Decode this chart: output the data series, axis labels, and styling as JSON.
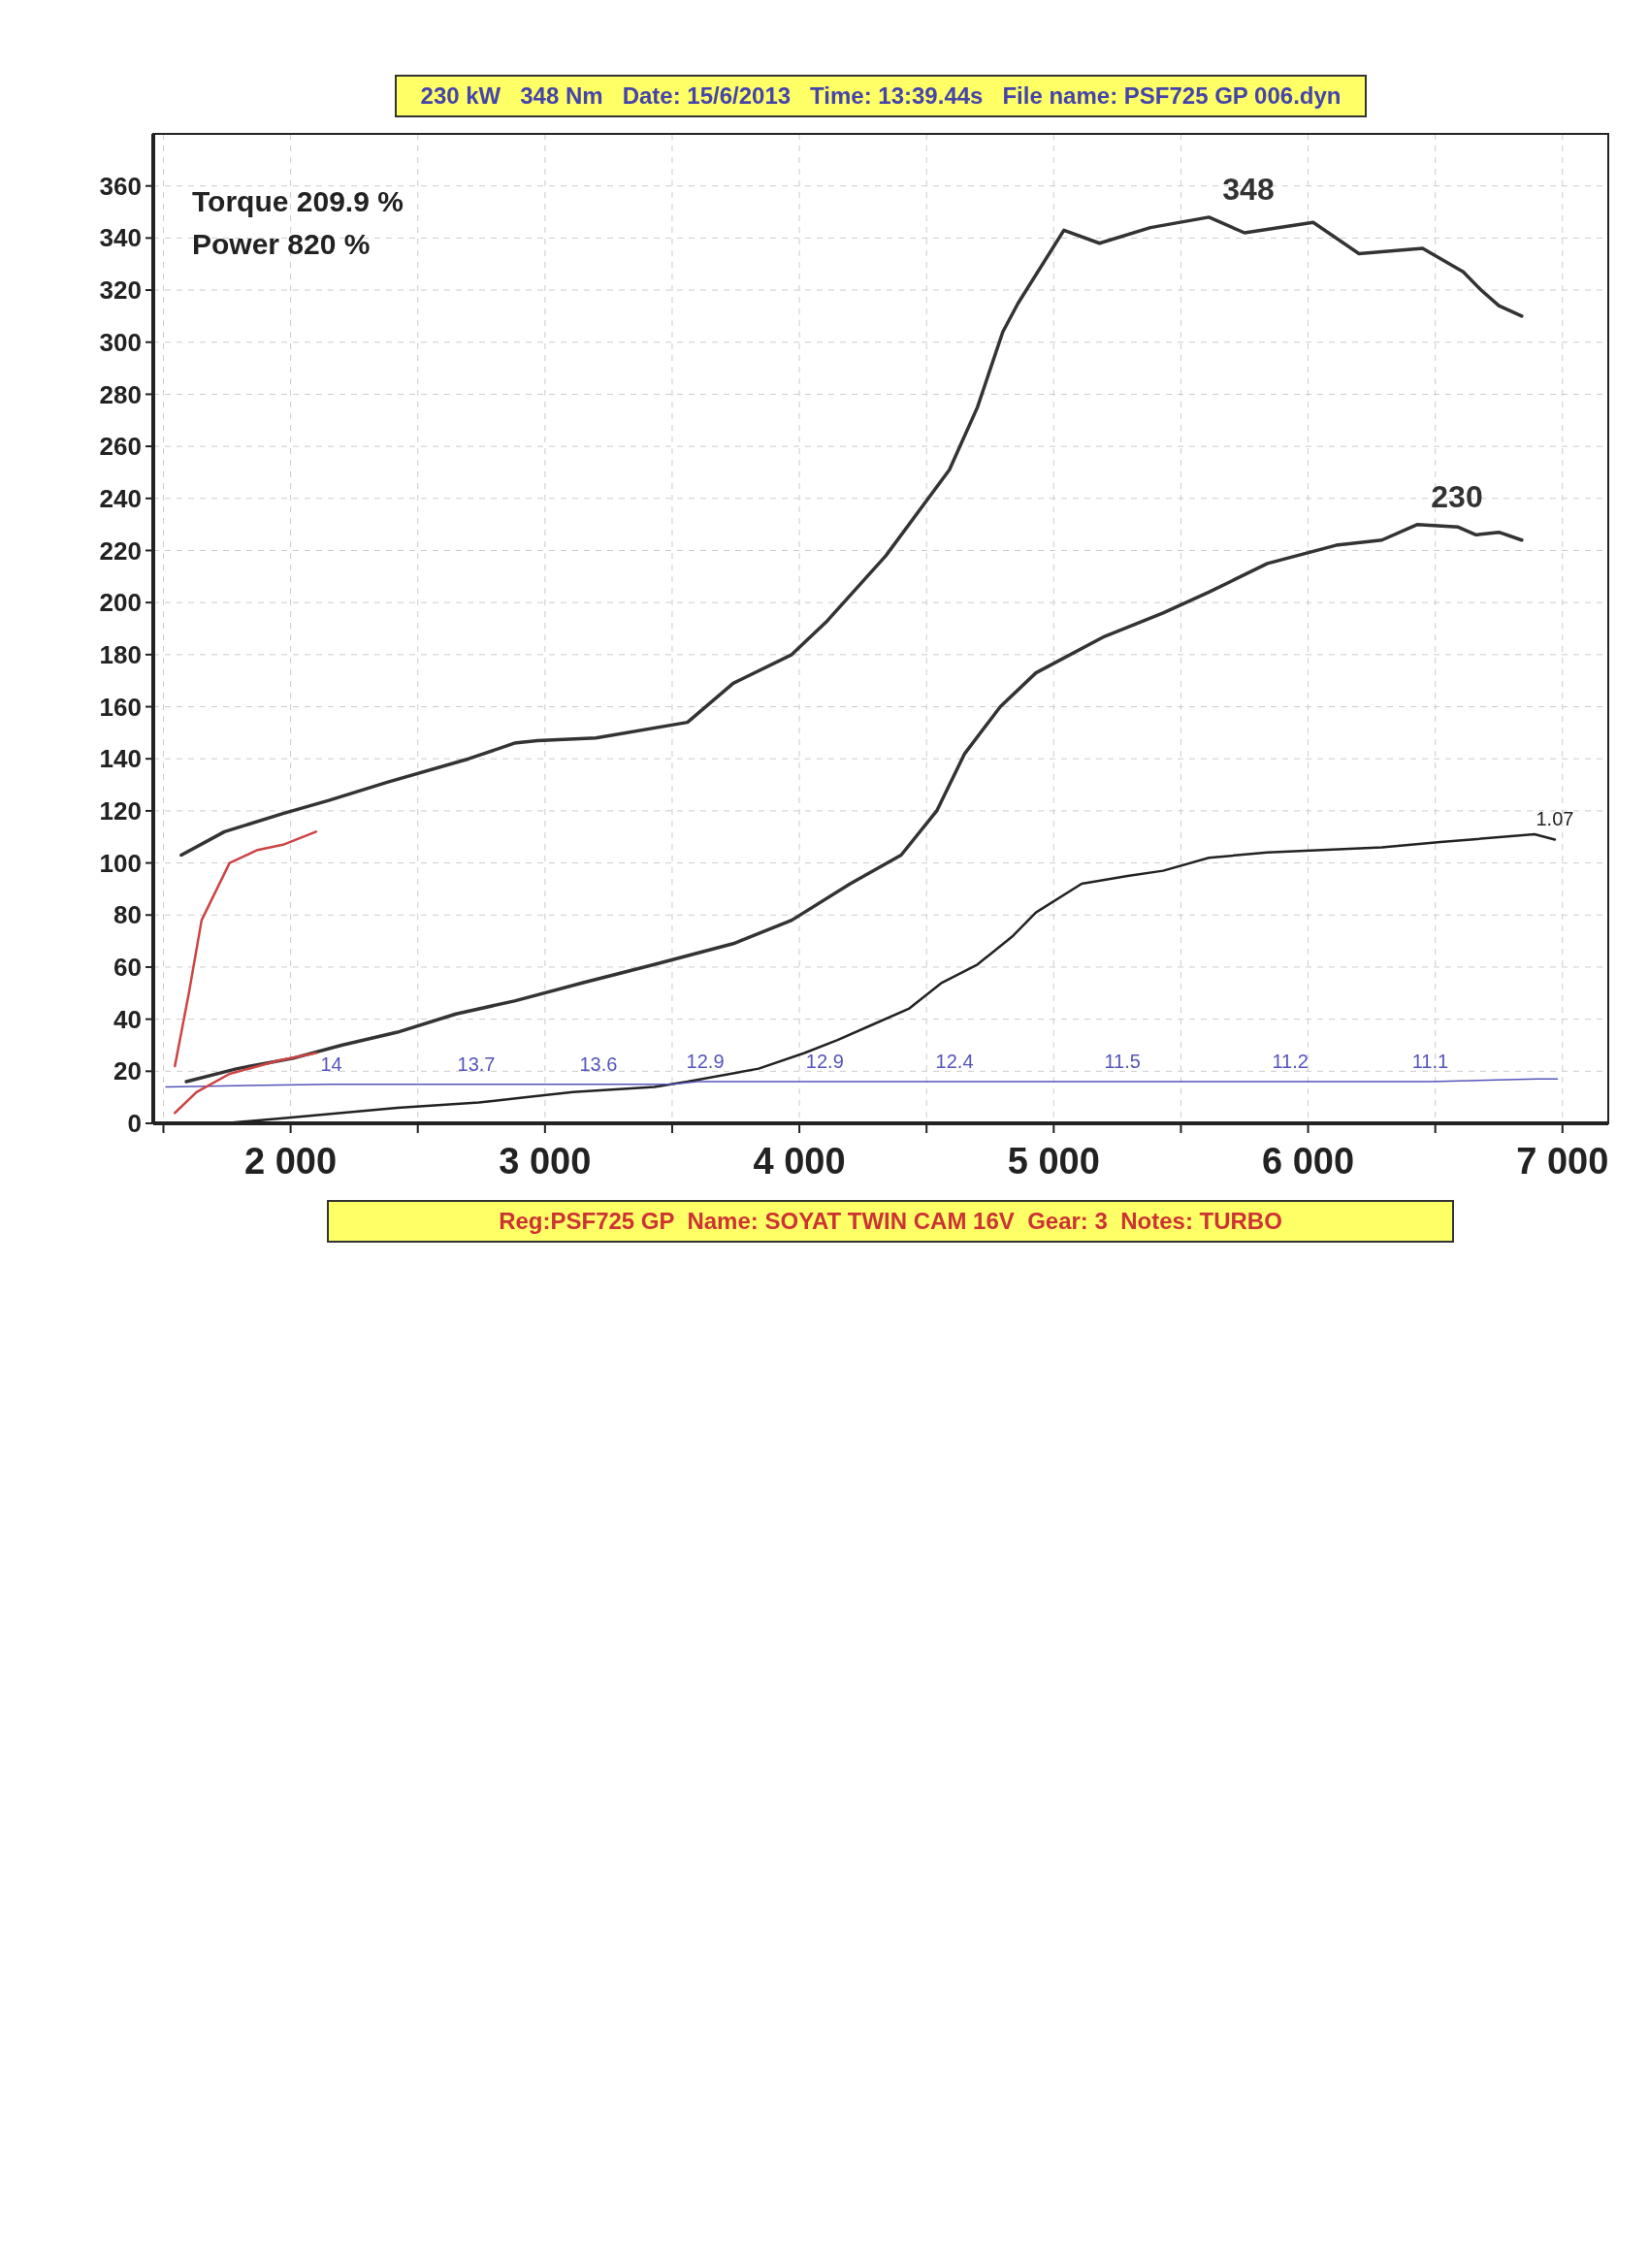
{
  "chart_data": {
    "type": "line",
    "title": "230 kW   348 Nm   Date: 15/6/2013   Time: 13:39.44s   File name: PSF725 GP 006.dyn",
    "subtitle": "Reg:PSF725 GP  Name: SOYAT TWIN CAM 16V  Gear: 3  Notes: TURBO",
    "annotations": [
      "Torque 209.9 %",
      "Power 820 %",
      {
        "text": "14",
        "x": 2160,
        "y": 15
      },
      {
        "text": "13.7",
        "x": 2730,
        "y": 15
      },
      {
        "text": "13.6",
        "x": 3210,
        "y": 15
      },
      {
        "text": "12.9",
        "x": 3630,
        "y": 16
      },
      {
        "text": "12.9",
        "x": 4100,
        "y": 16
      },
      {
        "text": "12.4",
        "x": 4610,
        "y": 16
      },
      {
        "text": "11.5",
        "x": 5270,
        "y": 16
      },
      {
        "text": "11.2",
        "x": 5930,
        "y": 16
      },
      {
        "text": "11.1",
        "x": 6480,
        "y": 16
      },
      {
        "text": "1.07",
        "x": 6970,
        "y": 109
      }
    ],
    "xlim": [
      1460,
      7180
    ],
    "ylim": [
      0,
      380
    ],
    "xticks": [
      {
        "value": 1500,
        "label": null
      },
      {
        "value": 2000,
        "label": "2 000"
      },
      {
        "value": 2500,
        "label": null
      },
      {
        "value": 3000,
        "label": "3 000"
      },
      {
        "value": 3500,
        "label": null
      },
      {
        "value": 4000,
        "label": "4 000"
      },
      {
        "value": 4500,
        "label": null
      },
      {
        "value": 5000,
        "label": "5 000"
      },
      {
        "value": 5500,
        "label": null
      },
      {
        "value": 6000,
        "label": "6 000"
      },
      {
        "value": 6500,
        "label": null
      },
      {
        "value": 7000,
        "label": "7 000"
      }
    ],
    "yticks": [
      0,
      20,
      40,
      60,
      80,
      100,
      120,
      140,
      160,
      180,
      200,
      220,
      240,
      260,
      280,
      300,
      320,
      340,
      360
    ],
    "grid": true,
    "marker": "none",
    "line_style": "solid",
    "series": [
      {
        "color": "#333333",
        "x": [
          1570,
          1740,
          1970,
          2150,
          2380,
          2700,
          2880,
          2970,
          3200,
          3560,
          3740,
          3970,
          4110,
          4340,
          4590,
          4700,
          4800,
          4860,
          5040,
          5180,
          5380,
          5610,
          5750,
          6020,
          6200,
          6450,
          6610,
          6680,
          6750,
          6840
        ],
        "values": [
          103,
          112,
          119,
          124,
          131,
          140,
          146,
          147,
          148,
          154,
          169,
          180,
          193,
          218,
          251,
          275,
          304,
          315,
          343,
          338,
          344,
          348,
          342,
          346,
          334,
          336,
          327,
          320,
          314,
          310
        ],
        "value_labels": [
          null,
          null,
          null,
          null,
          null,
          null,
          null,
          null,
          null,
          null,
          null,
          null,
          null,
          null,
          null,
          null,
          null,
          null,
          null,
          null,
          null,
          "348",
          null,
          null,
          null,
          null,
          null,
          null,
          null,
          null
        ]
      },
      {
        "color": "#333333",
        "x": [
          1590,
          1790,
          2010,
          2200,
          2420,
          2650,
          2880,
          3150,
          3430,
          3740,
          3970,
          4200,
          4400,
          4540,
          4650,
          4790,
          4930,
          5200,
          5430,
          5610,
          5840,
          6110,
          6290,
          6430,
          6590,
          6660,
          6750,
          6840
        ],
        "values": [
          16,
          21,
          25,
          30,
          35,
          42,
          47,
          54,
          61,
          69,
          78,
          92,
          103,
          120,
          142,
          160,
          173,
          187,
          196,
          204,
          215,
          222,
          224,
          230,
          229,
          226,
          227,
          224
        ],
        "value_labels": [
          null,
          null,
          null,
          null,
          null,
          null,
          null,
          null,
          null,
          null,
          null,
          null,
          null,
          null,
          null,
          null,
          null,
          null,
          null,
          null,
          null,
          null,
          null,
          "230",
          null,
          null,
          null,
          null
        ]
      },
      {
        "color": "#222222",
        "x": [
          1500,
          1740,
          1970,
          2200,
          2420,
          2740,
          2920,
          3110,
          3430,
          3560,
          3840,
          4020,
          4150,
          4290,
          4430,
          4560,
          4700,
          4840,
          4930,
          5110,
          5290,
          5430,
          5610,
          5840,
          6290,
          6520,
          6890,
          6970
        ],
        "values": [
          0,
          0,
          2,
          4,
          6,
          8,
          10,
          12,
          14,
          16,
          21,
          27,
          32,
          38,
          44,
          54,
          61,
          72,
          81,
          92,
          95,
          97,
          102,
          104,
          106,
          108,
          111,
          109
        ]
      },
      {
        "color": "#5555bb",
        "x": [
          1510,
          2160,
          2730,
          3210,
          3500,
          3600,
          3630,
          4100,
          4610,
          5270,
          5930,
          6480,
          6900,
          6980
        ],
        "values": [
          14,
          15,
          15,
          15,
          15,
          16,
          16,
          16,
          16,
          16,
          16,
          16,
          17,
          17
        ]
      },
      {
        "color": "#cc4444",
        "x": [
          1545,
          1600,
          1650,
          1760,
          1870,
          1970,
          2100
        ],
        "values": [
          22,
          50,
          78,
          100,
          105,
          107,
          112
        ]
      },
      {
        "color": "#cc4444",
        "x": [
          1545,
          1630,
          1760,
          1950,
          2100
        ],
        "values": [
          4,
          12,
          19,
          24,
          27
        ]
      }
    ]
  }
}
